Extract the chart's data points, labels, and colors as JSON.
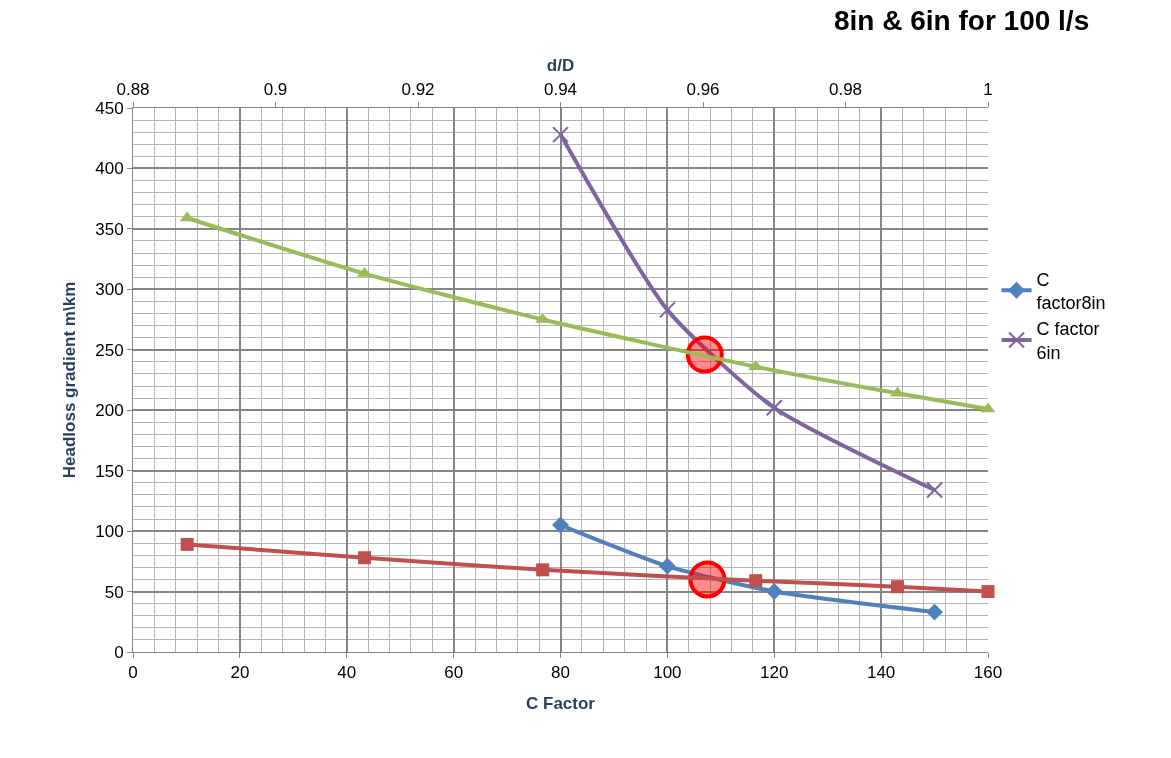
{
  "chart_data": {
    "type": "line",
    "title": "8in & 6in for 100 l/s",
    "xlabel": "C Factor",
    "x2label": "d/D",
    "ylabel": "Headloss gradient m\\km",
    "xlim": [
      0,
      160
    ],
    "xticks": [
      0,
      20,
      40,
      60,
      80,
      100,
      120,
      140,
      160
    ],
    "x2lim": [
      0.88,
      1
    ],
    "x2ticks": [
      0.88,
      0.9,
      0.92,
      0.94,
      0.96,
      0.98,
      1
    ],
    "ylim": [
      0,
      450
    ],
    "yticks": [
      0,
      50,
      100,
      150,
      200,
      250,
      300,
      350,
      400,
      450
    ],
    "grid": true,
    "legend": "right",
    "series": [
      {
        "name": "C factor8in",
        "color": "#4f81bd",
        "marker": "diamond",
        "x": [
          80,
          100,
          120,
          150
        ],
        "values": [
          105,
          71,
          50,
          33
        ]
      },
      {
        "name": "C factor 6in",
        "color": "#8064a2",
        "marker": "cross",
        "x": [
          80,
          100,
          120,
          150
        ],
        "values": [
          428,
          283,
          202,
          134
        ]
      },
      {
        "color": "#9bbb59",
        "marker": "triangle",
        "axis": "x2",
        "x": [
          0.8876,
          0.9125,
          0.9375,
          0.9674,
          0.9873,
          1.0
        ],
        "values": [
          359,
          313,
          275,
          236,
          214,
          201
        ]
      },
      {
        "color": "#c0504d",
        "marker": "square",
        "axis": "x2",
        "x": [
          0.8876,
          0.9125,
          0.9375,
          0.9674,
          0.9873,
          1.0
        ],
        "values": [
          89,
          78,
          68,
          59,
          54,
          50
        ]
      },
      {
        "type": "scatter",
        "color": "#ff0000",
        "marker": "circle",
        "x": [
          107,
          107.5
        ],
        "values": [
          246,
          60
        ]
      }
    ]
  }
}
